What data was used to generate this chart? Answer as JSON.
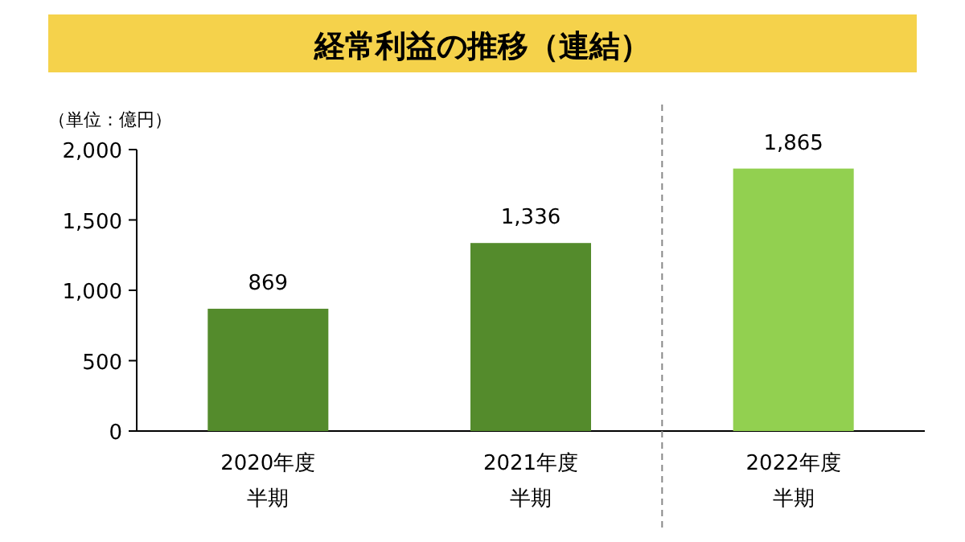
{
  "chart_data": {
    "type": "bar",
    "title": "経常利益の推移（連結）",
    "ylabel": "（単位：億円）",
    "categories": [
      "2020年度半期",
      "2021年度半期",
      "2022年度半期"
    ],
    "values": [
      869,
      1336,
      1865
    ],
    "colors": [
      "#548b2c",
      "#548b2c",
      "#92d050"
    ],
    "ylim": [
      0,
      2000
    ],
    "yticks": [
      0,
      500,
      {
        "value": 1000,
        "label": "1,000"
      },
      {
        "value": 1500,
        "label": "1,500"
      },
      {
        "value": 2000,
        "label": "2,000"
      }
    ],
    "value_labels": [
      "869",
      "1,336",
      "1,865"
    ]
  }
}
